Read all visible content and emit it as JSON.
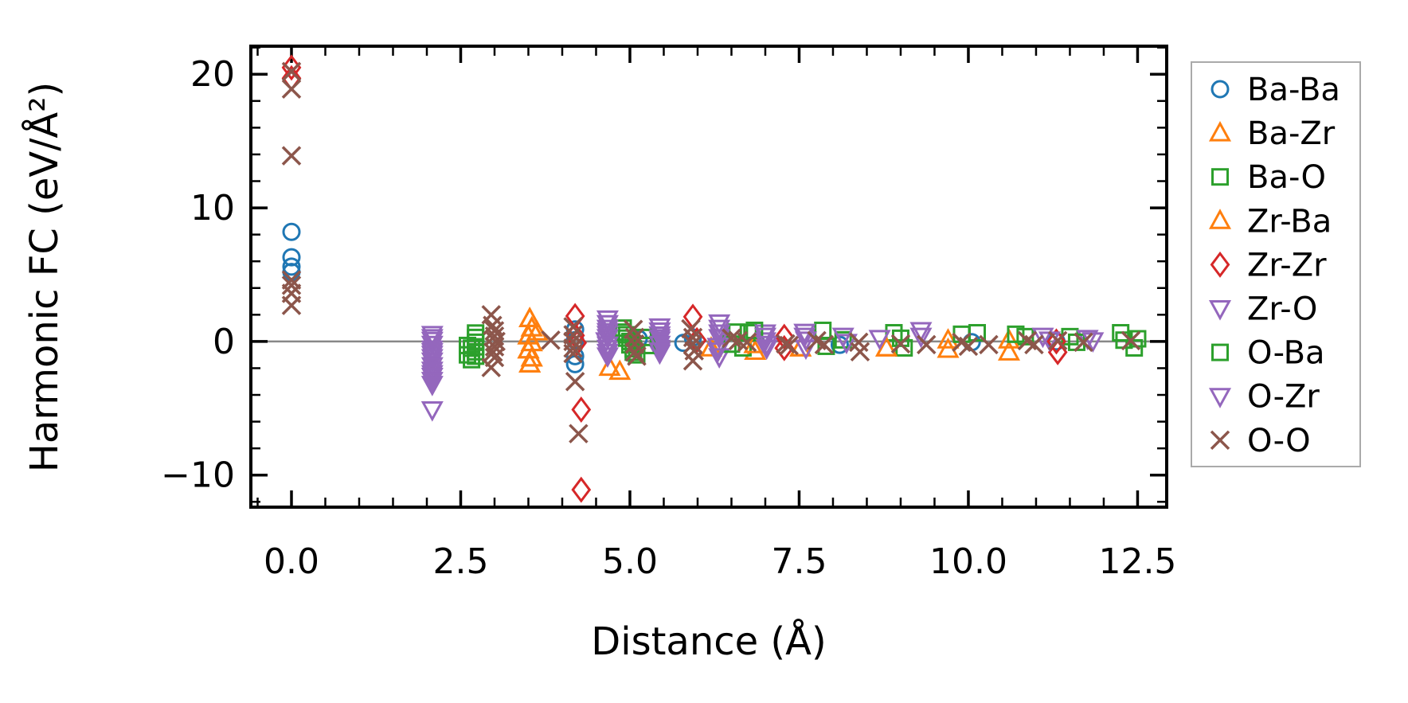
{
  "chart_data": {
    "type": "scatter",
    "title": "",
    "xlabel": "Distance (Å)",
    "ylabel": "Harmonic FC (eV/Å²)",
    "xlim": [
      -0.6,
      12.93
    ],
    "ylim": [
      -12.4,
      22.1
    ],
    "grid": false,
    "zero_line": {
      "y": 0,
      "color": "#888888"
    },
    "xticks": {
      "major": [
        0,
        2.5,
        5,
        7.5,
        10,
        12.5
      ],
      "labels": [
        "0.0",
        "2.5",
        "5.0",
        "7.5",
        "10.0",
        "12.5"
      ],
      "minor_step": 0.5
    },
    "yticks": {
      "major": [
        -10,
        0,
        10,
        20
      ],
      "labels": [
        "−10",
        "0",
        "10",
        "20"
      ],
      "minor_step": 2
    },
    "legend": {
      "position": "outside-right",
      "border_color": "#aaaaaa",
      "background": "#ffffff"
    },
    "series": [
      {
        "name": "Ba-Ba",
        "marker": "circle",
        "color": "#1f77b4",
        "points": [
          [
            0,
            8.2
          ],
          [
            0,
            6.3
          ],
          [
            0,
            5.6
          ],
          [
            0,
            5.2
          ],
          [
            4.19,
            0.9
          ],
          [
            4.19,
            0.1
          ],
          [
            4.19,
            -1.1
          ],
          [
            4.19,
            -1.7
          ],
          [
            5.13,
            0.2
          ],
          [
            5.79,
            -0.1
          ],
          [
            5.93,
            0.3
          ],
          [
            8.1,
            -0.25
          ],
          [
            10.05,
            -0.05
          ],
          [
            11.3,
            0.0
          ]
        ]
      },
      {
        "name": "Ba-Zr",
        "marker": "triangle-up",
        "color": "#ff7f0e",
        "points": [
          [
            3.52,
            1.7
          ],
          [
            3.55,
            1.0
          ],
          [
            3.5,
            0.4
          ],
          [
            3.55,
            -0.1
          ],
          [
            3.5,
            -0.65
          ],
          [
            3.55,
            -1.25
          ],
          [
            3.52,
            -1.7
          ],
          [
            3.63,
            0.7
          ],
          [
            4.7,
            -1.95
          ],
          [
            6.2,
            -0.5
          ],
          [
            6.85,
            -0.75
          ],
          [
            7.52,
            -0.5
          ],
          [
            8.79,
            -0.5
          ],
          [
            9.7,
            0.1
          ],
          [
            10.6,
            -0.8
          ]
        ]
      },
      {
        "name": "Ba-O",
        "marker": "square",
        "color": "#2ca02c",
        "points": [
          [
            2.6,
            -0.3
          ],
          [
            2.66,
            -1.36
          ],
          [
            2.72,
            0.63
          ],
          [
            2.72,
            -0.06
          ],
          [
            2.72,
            -0.77
          ],
          [
            4.9,
            1.0
          ],
          [
            4.95,
            0.5
          ],
          [
            5.0,
            0.0
          ],
          [
            5.05,
            -0.55
          ],
          [
            5.1,
            -1.0
          ],
          [
            6.58,
            0.7
          ],
          [
            6.75,
            0.65
          ],
          [
            6.67,
            -0.48
          ],
          [
            7.85,
            0.83
          ],
          [
            8.15,
            0.12
          ],
          [
            8.9,
            0.65
          ],
          [
            9.05,
            -0.48
          ],
          [
            9.9,
            0.54
          ],
          [
            10.13,
            0.65
          ],
          [
            10.84,
            0.36
          ],
          [
            11.5,
            0.36
          ],
          [
            12.25,
            0.65
          ],
          [
            12.45,
            -0.48
          ]
        ]
      },
      {
        "name": "Zr-Ba",
        "marker": "triangle-up",
        "color": "#ff7f0e",
        "points": [
          [
            3.52,
            1.7
          ],
          [
            3.55,
            1.0
          ],
          [
            3.5,
            0.4
          ],
          [
            3.55,
            -0.1
          ],
          [
            3.5,
            -0.65
          ],
          [
            3.55,
            -1.25
          ],
          [
            3.52,
            -1.7
          ],
          [
            4.85,
            -2.25
          ],
          [
            6.84,
            -0.25
          ],
          [
            7.52,
            -0.5
          ],
          [
            8.79,
            -0.5
          ],
          [
            9.7,
            -0.6
          ],
          [
            10.6,
            0.1
          ]
        ]
      },
      {
        "name": "Zr-Zr",
        "marker": "diamond",
        "color": "#d62728",
        "points": [
          [
            0,
            20.5
          ],
          [
            0,
            19.7
          ],
          [
            4.19,
            1.9
          ],
          [
            4.19,
            0.45
          ],
          [
            4.22,
            -0.1
          ],
          [
            4.28,
            -5.1
          ],
          [
            4.28,
            -11.1
          ],
          [
            5.93,
            1.85
          ],
          [
            5.99,
            0.1
          ],
          [
            7.28,
            0.35
          ],
          [
            7.28,
            -0.5
          ],
          [
            11.3,
            0.0
          ],
          [
            11.32,
            -0.8
          ]
        ]
      },
      {
        "name": "Zr-O",
        "marker": "triangle-down",
        "color": "#9467bd",
        "points": [
          [
            2.08,
            0.54
          ],
          [
            2.08,
            0.1
          ],
          [
            2.08,
            -0.56
          ],
          [
            2.08,
            -0.95
          ],
          [
            2.08,
            -1.45
          ],
          [
            2.08,
            -2.14
          ],
          [
            2.08,
            -2.6
          ],
          [
            2.08,
            -3.2
          ],
          [
            2.08,
            -5.1
          ],
          [
            4.67,
            1.7
          ],
          [
            4.67,
            1.0
          ],
          [
            4.67,
            0.54
          ],
          [
            4.65,
            0.06
          ],
          [
            4.67,
            -0.5
          ],
          [
            4.67,
            -1.07
          ],
          [
            5.44,
            1.1
          ],
          [
            5.44,
            0.5
          ],
          [
            5.44,
            0.12
          ],
          [
            5.44,
            -0.5
          ],
          [
            5.44,
            -0.85
          ],
          [
            6.32,
            1.4
          ],
          [
            6.32,
            0.65
          ],
          [
            6.3,
            -0.36
          ],
          [
            6.32,
            -1.13
          ],
          [
            7.0,
            0.65
          ],
          [
            7.0,
            0.06
          ],
          [
            7.02,
            -0.48
          ],
          [
            7.58,
            0.7
          ],
          [
            7.6,
            0.12
          ],
          [
            8.15,
            0.4
          ],
          [
            8.69,
            0.24
          ],
          [
            9.3,
            0.83
          ],
          [
            11.1,
            0.4
          ],
          [
            11.76,
            0.24
          ]
        ]
      },
      {
        "name": "O-Ba",
        "marker": "square",
        "color": "#2ca02c",
        "points": [
          [
            2.6,
            -1.0
          ],
          [
            2.66,
            -0.5
          ],
          [
            2.72,
            0.3
          ],
          [
            2.72,
            -0.4
          ],
          [
            2.72,
            -1.1
          ],
          [
            4.9,
            0.7
          ],
          [
            4.95,
            0.25
          ],
          [
            5.0,
            -0.25
          ],
          [
            5.05,
            -0.8
          ],
          [
            5.2,
            0.3
          ],
          [
            5.25,
            -0.3
          ],
          [
            6.5,
            -0.2
          ],
          [
            6.84,
            0.83
          ],
          [
            7.9,
            -0.36
          ],
          [
            9.0,
            0.24
          ],
          [
            10.7,
            0.54
          ],
          [
            11.6,
            -0.06
          ],
          [
            12.3,
            0.1
          ],
          [
            12.5,
            0.2
          ]
        ]
      },
      {
        "name": "O-Zr",
        "marker": "triangle-down",
        "color": "#9467bd",
        "points": [
          [
            2.08,
            0.3
          ],
          [
            2.08,
            -0.2
          ],
          [
            2.08,
            -0.75
          ],
          [
            2.08,
            -1.2
          ],
          [
            2.08,
            -1.8
          ],
          [
            2.08,
            -2.4
          ],
          [
            2.08,
            -2.9
          ],
          [
            4.67,
            1.35
          ],
          [
            4.67,
            0.75
          ],
          [
            4.67,
            0.3
          ],
          [
            4.67,
            -0.25
          ],
          [
            4.67,
            -0.8
          ],
          [
            5.44,
            0.8
          ],
          [
            5.44,
            0.3
          ],
          [
            5.44,
            -0.2
          ],
          [
            5.44,
            -0.7
          ],
          [
            6.32,
            1.0
          ],
          [
            6.32,
            0.3
          ],
          [
            6.3,
            -0.7
          ],
          [
            7.0,
            0.4
          ],
          [
            7.02,
            -0.2
          ],
          [
            7.58,
            0.4
          ],
          [
            7.6,
            -0.48
          ],
          [
            8.2,
            -0.06
          ],
          [
            9.3,
            0.4
          ],
          [
            11.2,
            0.12
          ],
          [
            11.84,
            0.06
          ]
        ]
      },
      {
        "name": "O-O",
        "marker": "x",
        "color": "#8c564b",
        "points": [
          [
            0,
            20.2
          ],
          [
            0,
            18.9
          ],
          [
            0,
            13.9
          ],
          [
            0,
            4.6
          ],
          [
            0,
            4.2
          ],
          [
            0,
            3.6
          ],
          [
            0,
            2.7
          ],
          [
            2.95,
            2.0
          ],
          [
            2.97,
            1.2
          ],
          [
            3.0,
            0.8
          ],
          [
            3.0,
            0.4
          ],
          [
            3.02,
            0.0
          ],
          [
            3.0,
            -0.4
          ],
          [
            2.98,
            -0.8
          ],
          [
            3.0,
            -1.2
          ],
          [
            2.95,
            -1.95
          ],
          [
            3.83,
            0.1
          ],
          [
            4.16,
            1.1
          ],
          [
            4.16,
            0.5
          ],
          [
            4.16,
            0.0
          ],
          [
            4.16,
            -0.5
          ],
          [
            4.16,
            -0.9
          ],
          [
            4.19,
            -3.0
          ],
          [
            4.24,
            -6.9
          ],
          [
            5.05,
            0.9
          ],
          [
            5.07,
            0.3
          ],
          [
            5.07,
            -0.2
          ],
          [
            5.07,
            -0.8
          ],
          [
            5.1,
            -1.1
          ],
          [
            5.9,
            0.95
          ],
          [
            5.93,
            0.3
          ],
          [
            5.93,
            -0.2
          ],
          [
            5.95,
            -0.7
          ],
          [
            5.93,
            -1.45
          ],
          [
            6.5,
            0.24
          ],
          [
            6.6,
            0.06
          ],
          [
            6.73,
            -0.06
          ],
          [
            7.3,
            -0.18
          ],
          [
            7.35,
            -0.3
          ],
          [
            7.76,
            0.06
          ],
          [
            7.87,
            -0.24
          ],
          [
            8.38,
            -0.06
          ],
          [
            8.4,
            -0.77
          ],
          [
            9.0,
            -0.18
          ],
          [
            9.38,
            -0.24
          ],
          [
            9.9,
            -0.06
          ],
          [
            10.0,
            -0.36
          ],
          [
            10.3,
            -0.24
          ],
          [
            10.87,
            0.06
          ],
          [
            10.97,
            -0.24
          ],
          [
            11.32,
            0.06
          ],
          [
            11.7,
            -0.06
          ],
          [
            12.4,
            0.06
          ]
        ]
      }
    ]
  }
}
